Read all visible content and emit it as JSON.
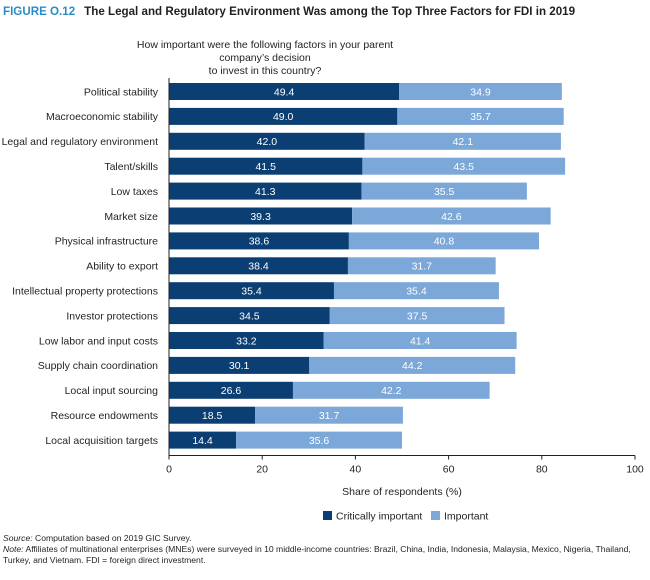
{
  "figure": {
    "label": "FIGURE O.12",
    "title": "The Legal and Regulatory Environment Was among the Top Three Factors for FDI in 2019"
  },
  "chart_data": {
    "type": "bar",
    "orientation": "horizontal",
    "stacked": true,
    "title": "How important were the following factors in your parent company’s decision to invest in this country?",
    "title_lines": [
      "How important were the following factors in your parent company’s decision",
      "to invest in this country?"
    ],
    "xlabel": "Share of respondents (%)",
    "ylabel": "",
    "xlim": [
      0,
      100
    ],
    "xticks": [
      0,
      20,
      40,
      60,
      80,
      100
    ],
    "grid": false,
    "legend_position": "bottom",
    "categories": [
      "Political stability",
      "Macroeconomic stability",
      "Legal and regulatory environment",
      "Talent/skills",
      "Low taxes",
      "Market size",
      "Physical infrastructure",
      "Ability to export",
      "Intellectual property protections",
      "Investor protections",
      "Low labor and input costs",
      "Supply chain coordination",
      "Local input sourcing",
      "Resource endowments",
      "Local acquisition targets"
    ],
    "series": [
      {
        "name": "Critically important",
        "color": "#0b3f73",
        "values": [
          49.4,
          49.0,
          42.0,
          41.5,
          41.3,
          39.3,
          38.6,
          38.4,
          35.4,
          34.5,
          33.2,
          30.1,
          26.6,
          18.5,
          14.4
        ]
      },
      {
        "name": "Important",
        "color": "#7ba7d9",
        "values": [
          34.9,
          35.7,
          42.1,
          43.5,
          35.5,
          42.6,
          40.8,
          31.7,
          35.4,
          37.5,
          41.4,
          44.2,
          42.2,
          31.7,
          35.6
        ]
      }
    ]
  },
  "notes": {
    "source_label": "Source:",
    "source_text": " Computation based on 2019 GIC Survey.",
    "note_label": "Note:",
    "note_text": " Affiliates of multinational enterprises (MNEs) were surveyed in 10 middle-income countries: Brazil, China, India, Indonesia, Malaysia, Mexico, Nigeria, Thailand, Turkey, and Vietnam. FDI = foreign direct investment."
  }
}
